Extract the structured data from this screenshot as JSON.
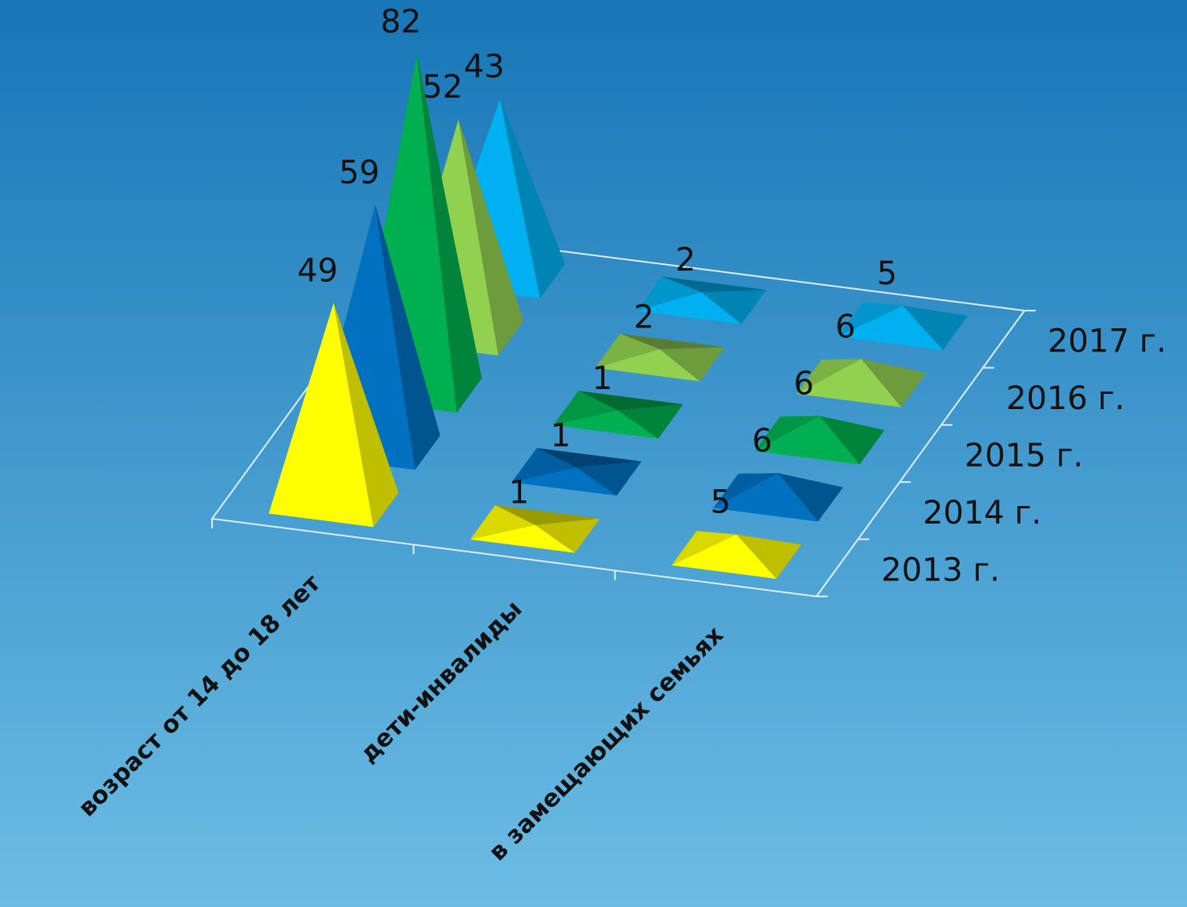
{
  "chart_data": {
    "type": "pyramid3d",
    "categories": [
      "возраст от 14 до 18 лет",
      "дети-инвалиды",
      "в замещающих семьях"
    ],
    "series": [
      {
        "name": "2013 г.",
        "color": "#ffff00",
        "values": [
          49,
          1,
          5
        ]
      },
      {
        "name": "2014 г.",
        "color": "#0070c0",
        "values": [
          59,
          1,
          6
        ]
      },
      {
        "name": "2015 г.",
        "color": "#00b050",
        "values": [
          82,
          1,
          6
        ]
      },
      {
        "name": "2016 г.",
        "color": "#92d050",
        "values": [
          52,
          2,
          6
        ]
      },
      {
        "name": "2017 г.",
        "color": "#00b0f0",
        "values": [
          43,
          2,
          5
        ]
      }
    ]
  }
}
